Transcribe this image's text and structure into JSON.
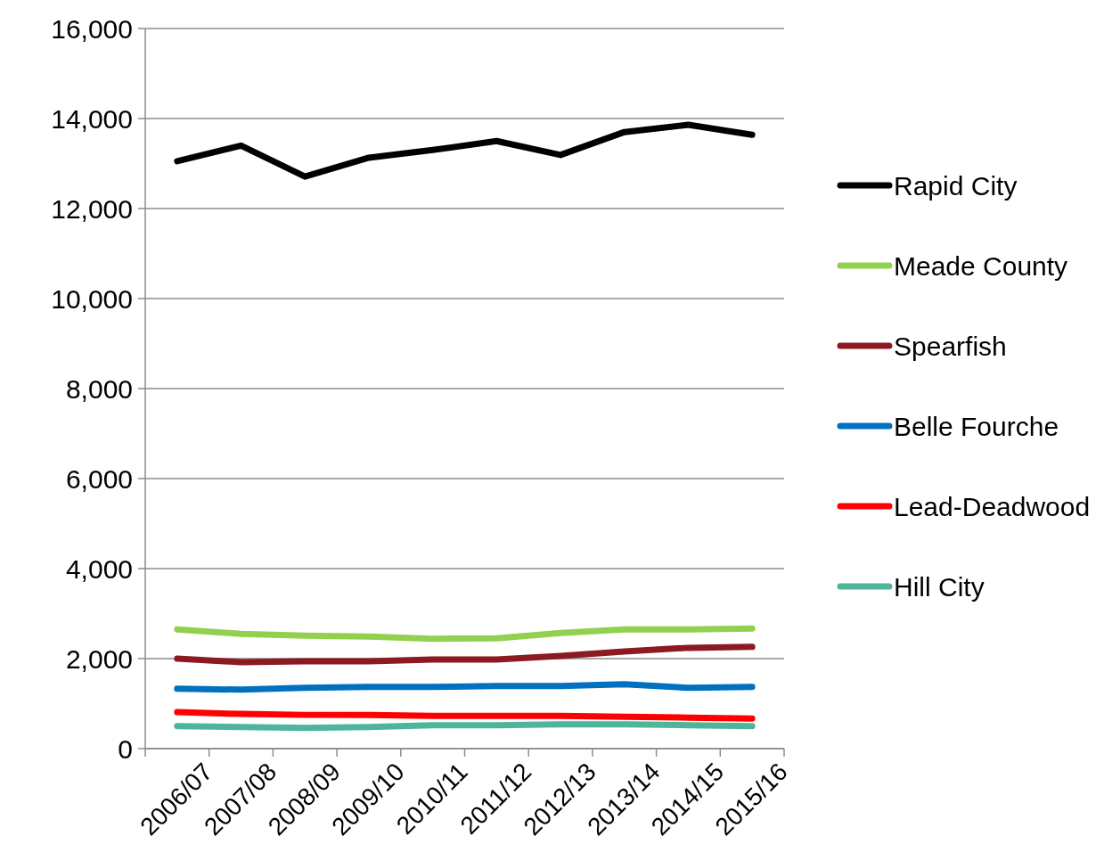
{
  "chart_data": {
    "type": "line",
    "categories": [
      "2006/07",
      "2007/08",
      "2008/09",
      "2009/10",
      "2010/11",
      "2011/12",
      "2012/13",
      "2013/14",
      "2014/15",
      "2015/16"
    ],
    "ylim": [
      0,
      16000
    ],
    "yticks": [
      {
        "value": 0,
        "label": "0"
      },
      {
        "value": 2000,
        "label": "2,000"
      },
      {
        "value": 4000,
        "label": "4,000"
      },
      {
        "value": 6000,
        "label": "6,000"
      },
      {
        "value": 8000,
        "label": "8,000"
      },
      {
        "value": 10000,
        "label": "10,000"
      },
      {
        "value": 12000,
        "label": "12,000"
      },
      {
        "value": 14000,
        "label": "14,000"
      },
      {
        "value": 16000,
        "label": "16,000"
      }
    ],
    "grid": "y",
    "legend": "right",
    "marker": "none",
    "line_style": "solid",
    "series": [
      {
        "name": "Rapid City",
        "color": "#000000",
        "values": [
          13050,
          13400,
          12710,
          13130,
          13300,
          13500,
          13190,
          13700,
          13860,
          13640
        ]
      },
      {
        "name": "Meade County",
        "color": "#92d050",
        "values": [
          2650,
          2550,
          2510,
          2490,
          2440,
          2450,
          2570,
          2650,
          2650,
          2670
        ]
      },
      {
        "name": "Spearfish",
        "color": "#8b1a23",
        "values": [
          2000,
          1920,
          1940,
          1940,
          1980,
          1980,
          2060,
          2160,
          2240,
          2260
        ]
      },
      {
        "name": "Belle Fourche",
        "color": "#0070c0",
        "values": [
          1330,
          1310,
          1350,
          1370,
          1370,
          1390,
          1390,
          1430,
          1350,
          1370
        ]
      },
      {
        "name": "Lead-Deadwood",
        "color": "#ff0000",
        "values": [
          810,
          770,
          750,
          750,
          730,
          730,
          730,
          710,
          690,
          670
        ]
      },
      {
        "name": "Hill City",
        "color": "#4fb59a",
        "values": [
          500,
          480,
          460,
          480,
          520,
          520,
          540,
          540,
          520,
          500
        ]
      }
    ]
  }
}
